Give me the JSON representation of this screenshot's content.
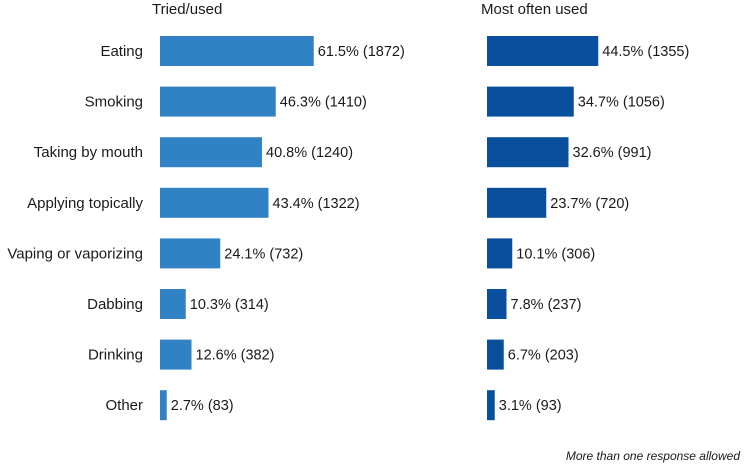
{
  "chart_data": {
    "type": "bar",
    "orientation": "horizontal",
    "categories": [
      "Eating",
      "Smoking",
      "Taking by mouth",
      "Applying topically",
      "Vaping or vaporizing",
      "Dabbing",
      "Drinking",
      "Other"
    ],
    "series": [
      {
        "name": "Tried/used",
        "color": "#3182c4",
        "values": [
          61.5,
          46.3,
          40.8,
          43.4,
          24.1,
          10.3,
          12.6,
          2.7
        ],
        "labels": [
          "61.5% (1872)",
          "46.3% (1410)",
          "40.8% (1240)",
          "43.4% (1322)",
          "24.1% (732)",
          "10.3% (314)",
          "12.6% (382)",
          "2.7% (83)"
        ]
      },
      {
        "name": "Most often used",
        "color": "#0a4f9e",
        "values": [
          44.5,
          34.7,
          32.6,
          23.7,
          10.1,
          7.8,
          6.7,
          3.1
        ],
        "labels": [
          "44.5% (1355)",
          "34.7% (1056)",
          "32.6% (991)",
          "23.7% (720)",
          "10.1% (306)",
          "7.8% (237)",
          "6.7% (203)",
          "3.1% (93)"
        ]
      }
    ],
    "xlim": [
      0,
      100
    ],
    "grid": false,
    "note": "More than one response allowed"
  }
}
